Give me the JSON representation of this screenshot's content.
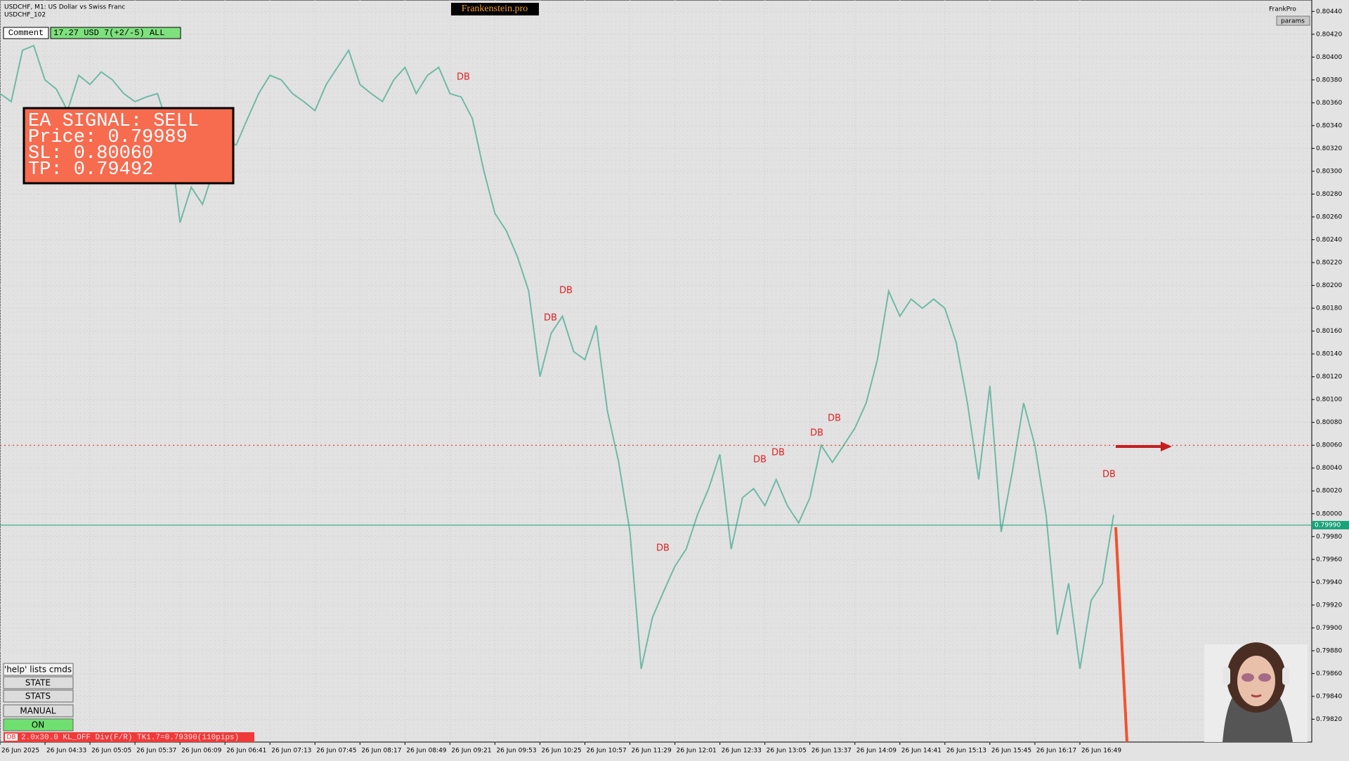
{
  "header": {
    "symbol": "USDCHF, M1:  US Dollar vs Swiss Franc",
    "account": "USDCHF_102",
    "brand": "Frankenstein.pro",
    "profile": "FrankPro",
    "params": "params"
  },
  "panel": {
    "comment": "Comment",
    "result": "17.27 USD 7(+2/-5) ALL"
  },
  "signal": {
    "lines": [
      "EA SIGNAL: SELL",
      "Price: 0.79989",
      "SL:     0.80060",
      "TP:     0.79492"
    ]
  },
  "buttons": [
    "'help' lists cmds",
    "STATE",
    "STATS",
    "MANUAL",
    "ON"
  ],
  "status": {
    "tag": "DB",
    "text": "2.0x30.0 KL_OFF Div(F/R) TK1.7=0.79390(110pips)"
  },
  "annotations": [
    "DB",
    "DB",
    "DB",
    "DB",
    "DB",
    "DB",
    "DB",
    "DB",
    "DB"
  ],
  "chart_data": {
    "type": "line",
    "categories": [
      "26 Jun 2025",
      null,
      null,
      null,
      "26 Jun 04:33",
      null,
      null,
      null,
      "26 Jun 05:05",
      null,
      null,
      null,
      "26 Jun 05:37",
      null,
      null,
      null,
      "26 Jun 06:09",
      null,
      null,
      null,
      "26 Jun 06:41",
      null,
      null,
      null,
      "26 Jun 07:13",
      null,
      null,
      null,
      "26 Jun 07:45",
      null,
      null,
      null,
      "26 Jun 08:17",
      null,
      null,
      null,
      "26 Jun 08:49",
      null,
      null,
      null,
      "26 Jun 09:21",
      null,
      null,
      null,
      "26 Jun 09:53",
      null,
      null,
      null,
      "26 Jun 10:25",
      null,
      null,
      null,
      "26 Jun 10:57",
      null,
      null,
      null,
      "26 Jun 11:29",
      null,
      null,
      null,
      "26 Jun 12:01",
      null,
      null,
      null,
      "26 Jun 12:33",
      null,
      null,
      null,
      "26 Jun 13:05",
      null,
      null,
      null,
      "26 Jun 13:37",
      null,
      null,
      null,
      "26 Jun 14:09",
      null,
      null,
      null,
      "26 Jun 14:41",
      null,
      null,
      null,
      "26 Jun 15:13",
      null,
      null,
      null,
      "26 Jun 15:45",
      null,
      null,
      null,
      "26 Jun 16:17",
      null,
      null,
      null,
      "26 Jun 16:49",
      null,
      null,
      null
    ],
    "values": [
      0.80368,
      0.80361,
      0.80406,
      0.8041,
      0.8038,
      0.80372,
      0.80353,
      0.80384,
      0.80376,
      0.80387,
      0.8038,
      0.80368,
      0.80361,
      0.80365,
      0.80368,
      0.80338,
      0.80255,
      0.80286,
      0.80271,
      0.80301,
      0.80327,
      0.80323,
      0.80346,
      0.80368,
      0.80384,
      0.8038,
      0.80368,
      0.80361,
      0.80353,
      0.80376,
      0.80391,
      0.80406,
      0.80376,
      0.80368,
      0.80361,
      0.8038,
      0.80391,
      0.80368,
      0.80384,
      0.80391,
      0.80368,
      0.80365,
      0.80346,
      0.80301,
      0.80263,
      0.80248,
      0.80225,
      0.80195,
      0.8012,
      0.80158,
      0.80173,
      0.80142,
      0.80135,
      0.80165,
      0.8009,
      0.80045,
      0.79984,
      0.79864,
      0.79909,
      0.79932,
      0.79954,
      0.79969,
      0.79999,
      0.80022,
      0.80052,
      0.79969,
      0.80014,
      0.80022,
      0.80007,
      0.8003,
      0.80007,
      0.79992,
      0.80014,
      0.8006,
      0.80045,
      0.8006,
      0.80075,
      0.80097,
      0.80135,
      0.80195,
      0.80173,
      0.80188,
      0.8018,
      0.80188,
      0.8018,
      0.8015,
      0.80097,
      0.8003,
      0.80112,
      0.79984,
      0.80037,
      0.80097,
      0.8006,
      0.79999,
      0.79894,
      0.79939,
      0.79864,
      0.79924,
      0.79939,
      0.79999
    ],
    "color": "#6fb9a6",
    "ylim": [
      0.798,
      0.8045
    ],
    "yticks": [
      {
        "value": 0.8044,
        "label": "0.80440"
      },
      {
        "value": 0.8042,
        "label": "0.80420"
      },
      {
        "value": 0.804,
        "label": "0.80400"
      },
      {
        "value": 0.8038,
        "label": "0.80380"
      },
      {
        "value": 0.8036,
        "label": "0.80360"
      },
      {
        "value": 0.8034,
        "label": "0.80340"
      },
      {
        "value": 0.8032,
        "label": "0.80320"
      },
      {
        "value": 0.803,
        "label": "0.80300"
      },
      {
        "value": 0.8028,
        "label": "0.80280"
      },
      {
        "value": 0.8026,
        "label": "0.80260"
      },
      {
        "value": 0.8024,
        "label": "0.80240"
      },
      {
        "value": 0.8022,
        "label": "0.80220"
      },
      {
        "value": 0.802,
        "label": "0.80200"
      },
      {
        "value": 0.8018,
        "label": "0.80180"
      },
      {
        "value": 0.8016,
        "label": "0.80160"
      },
      {
        "value": 0.8014,
        "label": "0.80140"
      },
      {
        "value": 0.8012,
        "label": "0.80120"
      },
      {
        "value": 0.801,
        "label": "0.80100"
      },
      {
        "value": 0.8008,
        "label": "0.80080"
      },
      {
        "value": 0.8006,
        "label": "0.80060"
      },
      {
        "value": 0.8004,
        "label": "0.80040"
      },
      {
        "value": 0.8002,
        "label": "0.80020"
      },
      {
        "value": 0.8,
        "label": "0.80000"
      },
      {
        "value": 0.7998,
        "label": "0.79980"
      },
      {
        "value": 0.7996,
        "label": "0.79960"
      },
      {
        "value": 0.7994,
        "label": "0.79940"
      },
      {
        "value": 0.7992,
        "label": "0.79920"
      },
      {
        "value": 0.799,
        "label": "0.79900"
      },
      {
        "value": 0.7988,
        "label": "0.79880"
      },
      {
        "value": 0.7986,
        "label": "0.79860"
      },
      {
        "value": 0.7984,
        "label": "0.79840"
      },
      {
        "value": 0.7982,
        "label": "0.79820"
      }
    ],
    "grid": true,
    "hlines": [
      {
        "value": 0.7999,
        "label": "0.79990",
        "color": "#1aa37a"
      },
      {
        "value": 0.8006,
        "color": "#e02020"
      }
    ]
  }
}
